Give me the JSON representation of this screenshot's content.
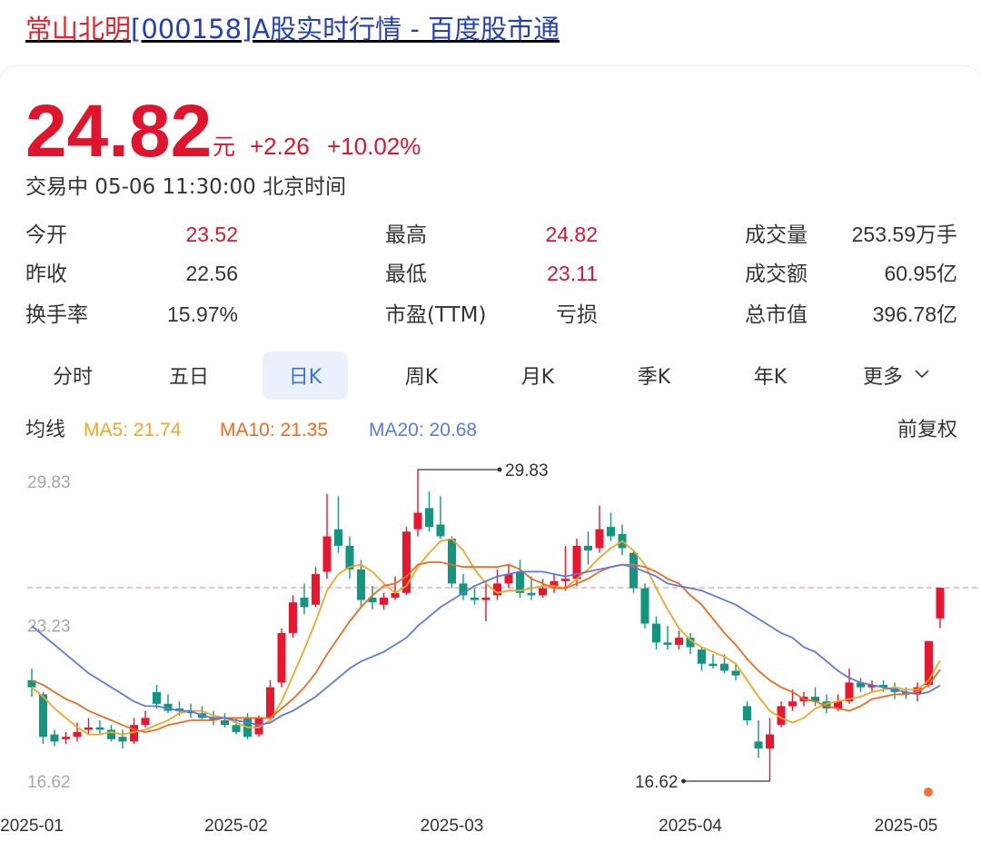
{
  "header": {
    "title_name": "常山北明",
    "title_rest": "[000158]A股实时行情 - 百度股市通"
  },
  "quote": {
    "price": "24.82",
    "unit": "元",
    "change": "+2.26",
    "change_pct": "+10.02%",
    "status": "交易中 05-06 11:30:00 北京时间"
  },
  "stats": {
    "rows": [
      [
        {
          "label": "今开",
          "value": "23.52",
          "color": "#e0142c"
        },
        {
          "label": "最高",
          "value": "24.82",
          "color": "#e0142c"
        },
        {
          "label": "成交量",
          "value": "253.59万手",
          "color": "#333333"
        }
      ],
      [
        {
          "label": "昨收",
          "value": "22.56",
          "color": "#333333"
        },
        {
          "label": "最低",
          "value": "23.11",
          "color": "#e0142c"
        },
        {
          "label": "成交额",
          "value": "60.95亿",
          "color": "#333333"
        }
      ],
      [
        {
          "label": "换手率",
          "value": "15.97%",
          "color": "#333333"
        },
        {
          "label": "市盈(TTM)",
          "value": "亏损",
          "color": "#333333"
        },
        {
          "label": "总市值",
          "value": "396.78亿",
          "color": "#333333"
        }
      ]
    ]
  },
  "tabs": {
    "items": [
      "分时",
      "五日",
      "日K",
      "周K",
      "月K",
      "季K",
      "年K",
      "更多"
    ],
    "selected": 2
  },
  "chart_data": {
    "type": "candlestick",
    "legend_title": "均线",
    "adjust": "前复权",
    "categories": [
      "2025-01",
      null,
      null,
      null,
      null,
      null,
      null,
      null,
      null,
      null,
      null,
      null,
      null,
      null,
      null,
      null,
      null,
      null,
      "2025-02",
      null,
      null,
      null,
      null,
      null,
      null,
      null,
      null,
      null,
      null,
      null,
      null,
      null,
      null,
      null,
      null,
      null,
      null,
      "2025-03",
      null,
      null,
      null,
      null,
      null,
      null,
      null,
      null,
      null,
      null,
      null,
      null,
      null,
      null,
      null,
      null,
      null,
      null,
      null,
      null,
      "2025-04",
      null,
      null,
      null,
      null,
      null,
      null,
      null,
      null,
      null,
      null,
      null,
      null,
      null,
      null,
      null,
      null,
      null,
      null,
      "2025-05",
      null,
      null,
      null
    ],
    "open": [
      20.9,
      20.3,
      18.6,
      18.4,
      18.5,
      18.8,
      18.9,
      18.8,
      18.5,
      18.3,
      19.0,
      20.4,
      19.9,
      19.7,
      19.6,
      19.5,
      19.3,
      19.2,
      19.0,
      19.3,
      18.6,
      19.3,
      20.8,
      22.9,
      24.4,
      24.1,
      25.5,
      27.3,
      26.6,
      25.6,
      24.4,
      24.1,
      24.4,
      24.6,
      27.3,
      28.2,
      27.5,
      26.9,
      25.0,
      24.4,
      24.3,
      24.5,
      25.0,
      25.5,
      24.6,
      24.5,
      24.8,
      25.1,
      25.2,
      26.6,
      26.5,
      27.4,
      27.1,
      26.3,
      24.8,
      23.3,
      22.5,
      22.4,
      22.7,
      22.2,
      21.6,
      21.6,
      21.3,
      19.8,
      18.3,
      18.0,
      19.0,
      19.8,
      20.0,
      20.2,
      20.0,
      19.7,
      20.0,
      20.8,
      20.6,
      20.7,
      20.6,
      20.4,
      20.3,
      20.7,
      23.52
    ],
    "high": [
      21.4,
      20.4,
      18.8,
      18.7,
      19.1,
      19.3,
      19.2,
      19.0,
      18.8,
      19.3,
      19.6,
      20.7,
      20.3,
      20.0,
      19.9,
      19.8,
      19.6,
      19.5,
      19.3,
      19.5,
      19.4,
      20.9,
      23.1,
      24.5,
      25.0,
      25.7,
      28.8,
      28.7,
      27.0,
      26.0,
      24.9,
      24.6,
      25.3,
      27.4,
      29.83,
      28.9,
      28.7,
      27.0,
      25.4,
      24.8,
      25.1,
      25.6,
      25.8,
      26.0,
      25.3,
      25.2,
      25.4,
      26.6,
      26.9,
      27.2,
      28.3,
      28.0,
      27.5,
      26.4,
      25.0,
      23.6,
      23.2,
      23.0,
      22.9,
      22.3,
      22.0,
      22.0,
      21.6,
      20.0,
      19.2,
      19.3,
      20.0,
      20.5,
      20.4,
      20.6,
      20.3,
      20.3,
      21.4,
      21.0,
      20.9,
      20.9,
      20.8,
      20.6,
      20.8,
      22.56,
      24.82
    ],
    "low": [
      20.2,
      18.2,
      18.1,
      18.2,
      18.3,
      18.6,
      18.6,
      18.3,
      18.0,
      18.2,
      18.9,
      19.7,
      19.5,
      19.4,
      19.3,
      19.2,
      19.0,
      18.9,
      18.6,
      18.4,
      18.5,
      19.2,
      20.6,
      22.7,
      23.7,
      24.0,
      25.2,
      26.3,
      25.2,
      24.0,
      23.9,
      23.9,
      24.3,
      24.5,
      27.0,
      27.2,
      26.9,
      24.8,
      24.3,
      24.1,
      23.4,
      24.3,
      24.8,
      24.4,
      24.3,
      24.4,
      24.6,
      24.7,
      24.9,
      25.8,
      26.3,
      26.8,
      26.2,
      24.6,
      23.1,
      22.2,
      22.2,
      22.2,
      22.0,
      21.3,
      21.4,
      21.2,
      20.9,
      19.0,
      17.6,
      16.62,
      18.9,
      19.6,
      19.8,
      19.8,
      19.5,
      19.6,
      19.9,
      20.4,
      20.4,
      20.4,
      20.1,
      20.1,
      20.0,
      20.6,
      23.11
    ],
    "close": [
      20.6,
      18.5,
      18.3,
      18.5,
      18.7,
      18.9,
      18.8,
      18.4,
      18.3,
      19.0,
      19.3,
      19.9,
      19.6,
      19.6,
      19.5,
      19.3,
      19.2,
      19.0,
      18.7,
      18.5,
      19.3,
      20.6,
      22.9,
      24.2,
      24.0,
      25.4,
      27.0,
      26.6,
      25.6,
      24.3,
      24.2,
      24.4,
      24.6,
      27.2,
      28.0,
      27.4,
      27.0,
      25.0,
      24.5,
      24.3,
      24.4,
      25.0,
      25.4,
      24.6,
      24.5,
      24.8,
      25.1,
      25.2,
      26.6,
      26.4,
      27.3,
      27.0,
      26.5,
      24.8,
      23.3,
      22.5,
      22.4,
      22.7,
      22.3,
      21.6,
      21.5,
      21.3,
      21.1,
      19.2,
      18.0,
      18.6,
      19.8,
      20.0,
      20.2,
      20.0,
      19.7,
      20.0,
      20.8,
      20.6,
      20.7,
      20.6,
      20.4,
      20.3,
      20.6,
      22.56,
      24.82
    ],
    "up_color": "#e8162e",
    "down_color": "#139680",
    "ma": [
      {
        "name": "MA5: 21.74",
        "color": "#f5a623",
        "values": [
          20.6,
          20.2,
          19.7,
          19.3,
          18.9,
          18.6,
          18.6,
          18.7,
          18.6,
          18.7,
          18.8,
          19.0,
          19.2,
          19.5,
          19.6,
          19.6,
          19.4,
          19.3,
          19.1,
          18.9,
          18.9,
          19.2,
          20.0,
          21.1,
          22.2,
          23.4,
          24.7,
          25.4,
          25.7,
          25.8,
          25.5,
          25.0,
          24.6,
          24.9,
          25.7,
          26.3,
          26.8,
          26.9,
          26.4,
          25.6,
          25.0,
          24.6,
          24.7,
          24.7,
          24.8,
          24.9,
          24.9,
          24.8,
          25.2,
          25.6,
          26.1,
          26.5,
          26.8,
          26.4,
          25.8,
          24.8,
          23.9,
          23.1,
          22.6,
          22.3,
          22.1,
          21.9,
          21.6,
          20.9,
          20.2,
          19.6,
          19.3,
          19.1,
          19.3,
          19.7,
          19.9,
          20.0,
          20.1,
          20.2,
          20.4,
          20.5,
          20.6,
          20.5,
          20.5,
          20.9,
          21.74
        ]
      },
      {
        "name": "MA10: 21.35",
        "color": "#f26b21",
        "values": [
          20.9,
          20.7,
          20.4,
          20.1,
          19.9,
          19.6,
          19.4,
          19.2,
          19.0,
          18.8,
          18.7,
          18.8,
          19.0,
          19.1,
          19.2,
          19.2,
          19.2,
          19.3,
          19.3,
          19.3,
          19.3,
          19.3,
          19.7,
          20.1,
          20.6,
          21.2,
          22.0,
          22.7,
          23.4,
          24.0,
          24.5,
          24.9,
          25.0,
          25.3,
          25.8,
          25.9,
          25.9,
          25.8,
          25.7,
          25.7,
          25.7,
          25.7,
          25.8,
          25.6,
          25.2,
          25.0,
          24.8,
          24.8,
          25.0,
          25.2,
          25.5,
          25.7,
          25.8,
          25.8,
          25.7,
          25.5,
          25.2,
          25.0,
          24.5,
          24.1,
          23.5,
          22.9,
          22.4,
          21.8,
          21.3,
          20.9,
          20.6,
          20.4,
          20.1,
          20.0,
          19.8,
          19.7,
          19.6,
          19.8,
          20.1,
          20.2,
          20.3,
          20.3,
          20.4,
          20.7,
          21.35
        ]
      },
      {
        "name": "MA20: 20.68",
        "color": "#5b79e8",
        "values": [
          23.2,
          22.8,
          22.4,
          22.0,
          21.6,
          21.2,
          20.9,
          20.6,
          20.3,
          20.0,
          19.8,
          19.8,
          19.7,
          19.6,
          19.6,
          19.4,
          19.3,
          19.3,
          19.2,
          19.1,
          19.0,
          19.1,
          19.4,
          19.6,
          19.9,
          20.2,
          20.6,
          21.0,
          21.4,
          21.7,
          21.9,
          22.1,
          22.4,
          22.7,
          23.2,
          23.6,
          24.0,
          24.3,
          24.6,
          24.9,
          25.1,
          25.3,
          25.4,
          25.5,
          25.5,
          25.5,
          25.4,
          25.3,
          25.4,
          25.5,
          25.6,
          25.7,
          25.8,
          25.7,
          25.5,
          25.3,
          25.0,
          24.9,
          24.8,
          24.7,
          24.5,
          24.3,
          24.1,
          23.8,
          23.5,
          23.2,
          22.9,
          22.7,
          22.3,
          22.1,
          21.7,
          21.3,
          21.0,
          20.8,
          20.7,
          20.6,
          20.5,
          20.4,
          20.3,
          20.4,
          20.68
        ]
      }
    ],
    "ylim": [
      16.62,
      29.83
    ],
    "yticks": [
      29.83,
      23.23,
      16.62
    ],
    "grid": false
  }
}
